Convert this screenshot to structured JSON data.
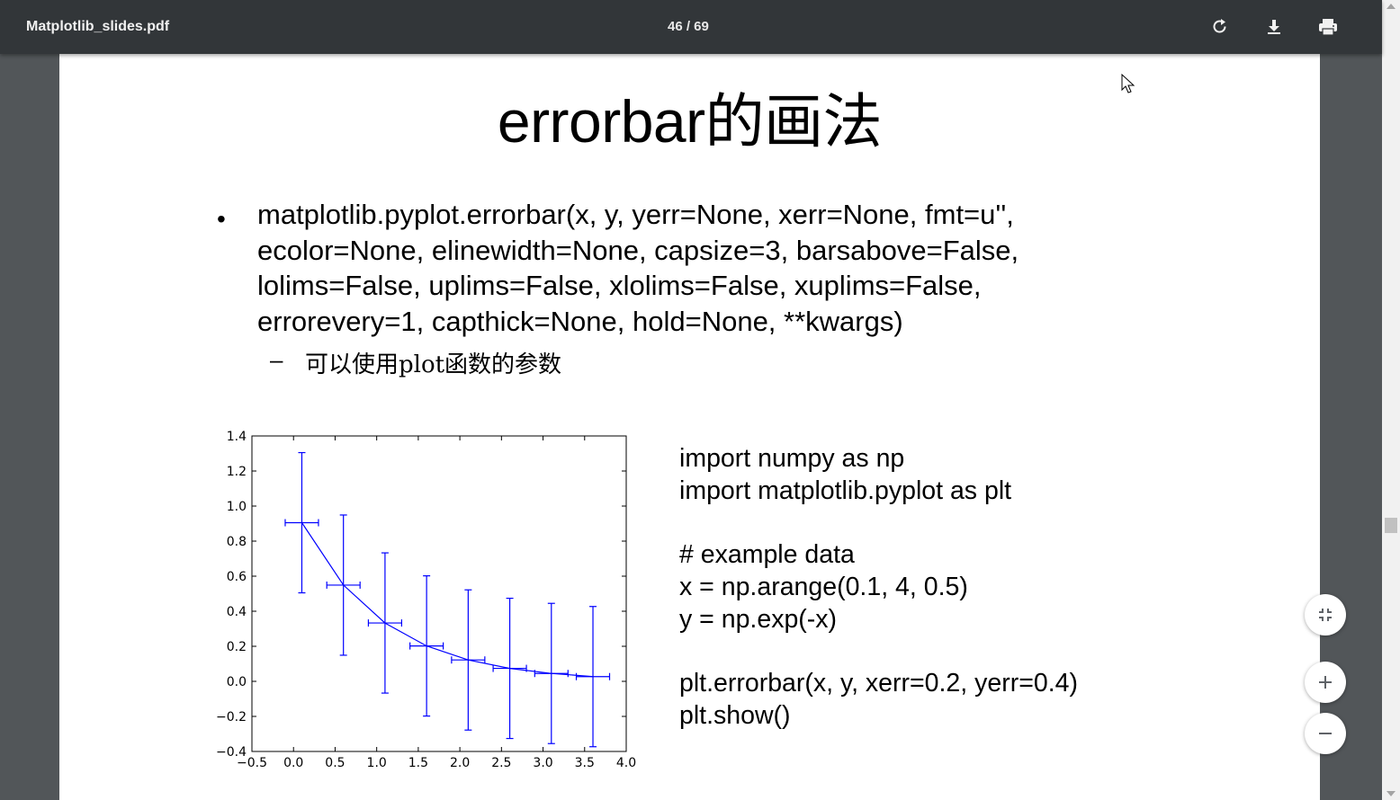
{
  "toolbar": {
    "file_name": "Matplotlib_slides.pdf",
    "page_indicator": "46 / 69",
    "rotate_icon": "rotate-icon",
    "download_icon": "download-icon",
    "print_icon": "print-icon"
  },
  "slide": {
    "title": "errorbar的画法",
    "bullet_lines": [
      "matplotlib.pyplot.errorbar(x, y, yerr=None, xerr=None, fmt=u'',",
      "ecolor=None, elinewidth=None, capsize=3, barsabove=False,",
      "lolims=False, uplims=False, xlolims=False, xuplims=False,",
      "errorevery=1, capthick=None, hold=None, **kwargs)"
    ],
    "sub_dash": "–",
    "sub_bullet": "可以使用plot函数的参数",
    "code_lines": [
      "import numpy as np",
      "import matplotlib.pyplot as plt",
      "",
      "# example data",
      "x = np.arange(0.1, 4, 0.5)",
      "y = np.exp(-x)",
      "",
      "plt.errorbar(x, y, xerr=0.2, yerr=0.4)",
      "plt.show()"
    ]
  },
  "chart_data": {
    "type": "line",
    "x": [
      0.1,
      0.6,
      1.1,
      1.6,
      2.1,
      2.6,
      3.1,
      3.6
    ],
    "series": [
      {
        "values": [
          0.905,
          0.549,
          0.333,
          0.202,
          0.122,
          0.074,
          0.045,
          0.027
        ],
        "xerr": 0.2,
        "yerr": 0.4,
        "color": "#0000ff"
      }
    ],
    "xlim": [
      -0.5,
      4.0
    ],
    "ylim": [
      -0.4,
      1.4
    ],
    "xticks": [
      "−0.5",
      "0.0",
      "0.5",
      "1.0",
      "1.5",
      "2.0",
      "2.5",
      "3.0",
      "3.5",
      "4.0"
    ],
    "yticks": [
      "1.4",
      "1.2",
      "1.0",
      "0.8",
      "0.6",
      "0.4",
      "0.2",
      "0.0",
      "−0.2",
      "−0.4"
    ],
    "grid": false
  },
  "zoom_controls": {
    "fit_icon": "fit-to-page-icon",
    "zoom_in_icon": "plus-icon",
    "zoom_out_icon": "minus-icon"
  },
  "colors": {
    "toolbar_bg": "#323639",
    "viewer_bg": "#525659",
    "series_color": "#0000ff"
  }
}
